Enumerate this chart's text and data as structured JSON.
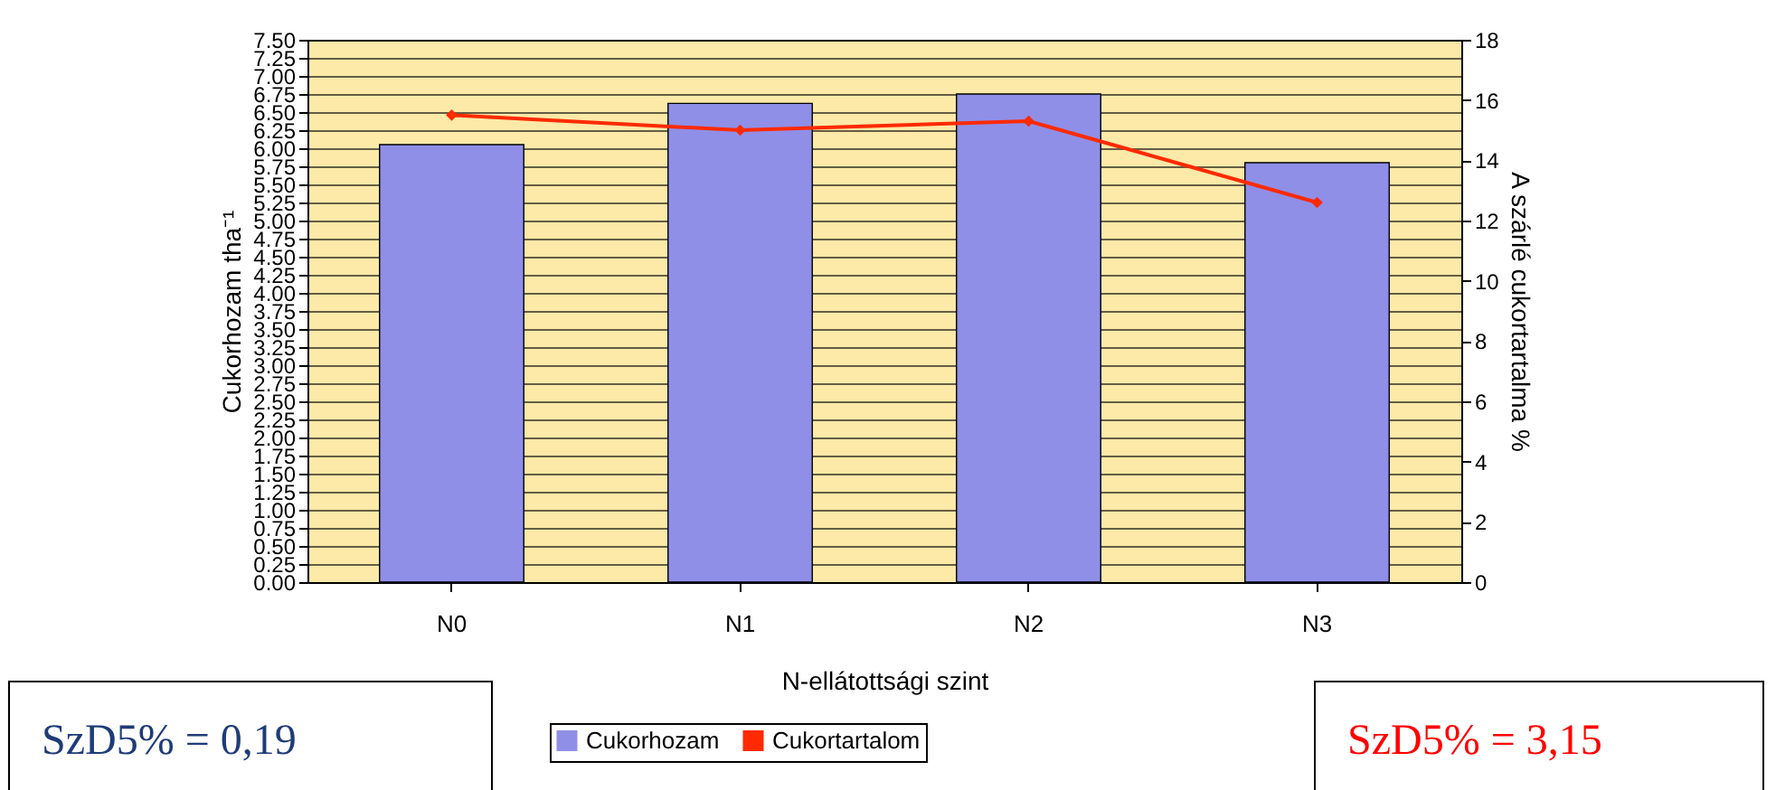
{
  "chart_data": {
    "type": "bar",
    "categories": [
      "N0",
      "N1",
      "N2",
      "N3"
    ],
    "series": [
      {
        "name": "Cukorhozam",
        "color": "#8f8fe8",
        "values": [
          6.05,
          6.62,
          6.75,
          5.8
        ]
      },
      {
        "name": "Cukortartalom",
        "type": "line",
        "axis": "y2",
        "color": "#ff2a00",
        "values": [
          15.5,
          15.0,
          15.3,
          12.6
        ],
        "marker": "diamond"
      }
    ],
    "xlabel": "N-ellátottsági szint",
    "ylabel": "Cukorhozam tha⁻¹",
    "y2label": "A szárlé cukortartalma %",
    "ylim": [
      0,
      7.5
    ],
    "yticks": [
      {
        "value": 0,
        "label": "0.00"
      },
      {
        "value": 0.25,
        "label": "0.25"
      },
      {
        "value": 0.5,
        "label": "0.50"
      },
      {
        "value": 0.75,
        "label": "0.75"
      },
      {
        "value": 1,
        "label": "1.00"
      },
      {
        "value": 1.25,
        "label": "1.25"
      },
      {
        "value": 1.5,
        "label": "1.50"
      },
      {
        "value": 1.75,
        "label": "1.75"
      },
      {
        "value": 2,
        "label": "2.00"
      },
      {
        "value": 2.25,
        "label": "2.25"
      },
      {
        "value": 2.5,
        "label": "2.50"
      },
      {
        "value": 2.75,
        "label": "2.75"
      },
      {
        "value": 3,
        "label": "3.00"
      },
      {
        "value": 3.25,
        "label": "3.25"
      },
      {
        "value": 3.5,
        "label": "3.50"
      },
      {
        "value": 3.75,
        "label": "3.75"
      },
      {
        "value": 4,
        "label": "4.00"
      },
      {
        "value": 4.25,
        "label": "4.25"
      },
      {
        "value": 4.5,
        "label": "4.50"
      },
      {
        "value": 4.75,
        "label": "4.75"
      },
      {
        "value": 5,
        "label": "5.00"
      },
      {
        "value": 5.25,
        "label": "5.25"
      },
      {
        "value": 5.5,
        "label": "5.50"
      },
      {
        "value": 5.75,
        "label": "5.75"
      },
      {
        "value": 6,
        "label": "6.00"
      },
      {
        "value": 6.25,
        "label": "6.25"
      },
      {
        "value": 6.5,
        "label": "6.50"
      },
      {
        "value": 6.75,
        "label": "6.75"
      },
      {
        "value": 7,
        "label": "7.00"
      },
      {
        "value": 7.25,
        "label": "7.25"
      },
      {
        "value": 7.5,
        "label": "7.50"
      }
    ],
    "y2lim": [
      0,
      18
    ],
    "y2ticks": [
      0,
      2,
      4,
      6,
      8,
      10,
      12,
      14,
      16,
      18
    ],
    "grid": "y",
    "legend": "bottom",
    "annotations": [
      "SzD5% = 0,19",
      "SzD5% = 3,15"
    ]
  }
}
